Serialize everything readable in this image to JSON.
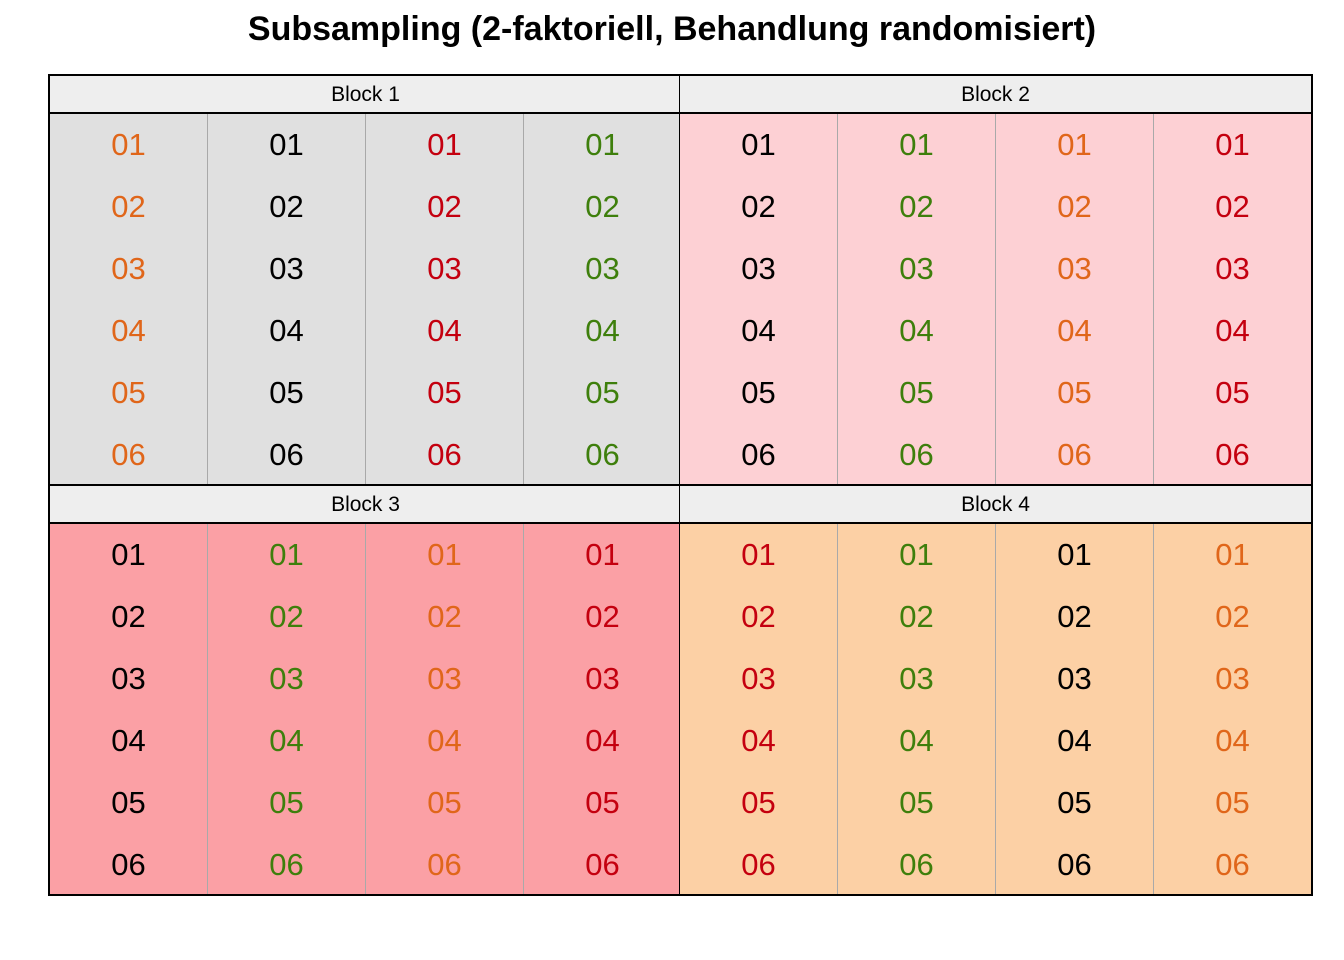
{
  "title": "Subsampling (2-faktoriell, Behandlung randomisiert)",
  "colors": {
    "orange": "#e0661a",
    "black": "#000000",
    "red": "#c4000f",
    "green": "#3e7f0c",
    "strip_bg": "#eeeeee",
    "block_bg": [
      "#e0e0e0",
      "#fdd0d4",
      "#fba0a5",
      "#fcd0a5"
    ]
  },
  "blocks": [
    {
      "label": "Block 1",
      "background": "#e0e0e0",
      "columns": [
        {
          "color": "orange",
          "cells": [
            "01",
            "02",
            "03",
            "04",
            "05",
            "06"
          ]
        },
        {
          "color": "black",
          "cells": [
            "01",
            "02",
            "03",
            "04",
            "05",
            "06"
          ]
        },
        {
          "color": "red",
          "cells": [
            "01",
            "02",
            "03",
            "04",
            "05",
            "06"
          ]
        },
        {
          "color": "green",
          "cells": [
            "01",
            "02",
            "03",
            "04",
            "05",
            "06"
          ]
        }
      ]
    },
    {
      "label": "Block 2",
      "background": "#fdd0d4",
      "columns": [
        {
          "color": "black",
          "cells": [
            "01",
            "02",
            "03",
            "04",
            "05",
            "06"
          ]
        },
        {
          "color": "green",
          "cells": [
            "01",
            "02",
            "03",
            "04",
            "05",
            "06"
          ]
        },
        {
          "color": "orange",
          "cells": [
            "01",
            "02",
            "03",
            "04",
            "05",
            "06"
          ]
        },
        {
          "color": "red",
          "cells": [
            "01",
            "02",
            "03",
            "04",
            "05",
            "06"
          ]
        }
      ]
    },
    {
      "label": "Block 3",
      "background": "#fba0a5",
      "columns": [
        {
          "color": "black",
          "cells": [
            "01",
            "02",
            "03",
            "04",
            "05",
            "06"
          ]
        },
        {
          "color": "green",
          "cells": [
            "01",
            "02",
            "03",
            "04",
            "05",
            "06"
          ]
        },
        {
          "color": "orange",
          "cells": [
            "01",
            "02",
            "03",
            "04",
            "05",
            "06"
          ]
        },
        {
          "color": "red",
          "cells": [
            "01",
            "02",
            "03",
            "04",
            "05",
            "06"
          ]
        }
      ]
    },
    {
      "label": "Block 4",
      "background": "#fcd0a5",
      "columns": [
        {
          "color": "red",
          "cells": [
            "01",
            "02",
            "03",
            "04",
            "05",
            "06"
          ]
        },
        {
          "color": "green",
          "cells": [
            "01",
            "02",
            "03",
            "04",
            "05",
            "06"
          ]
        },
        {
          "color": "black",
          "cells": [
            "01",
            "02",
            "03",
            "04",
            "05",
            "06"
          ]
        },
        {
          "color": "orange",
          "cells": [
            "01",
            "02",
            "03",
            "04",
            "05",
            "06"
          ]
        }
      ]
    }
  ]
}
